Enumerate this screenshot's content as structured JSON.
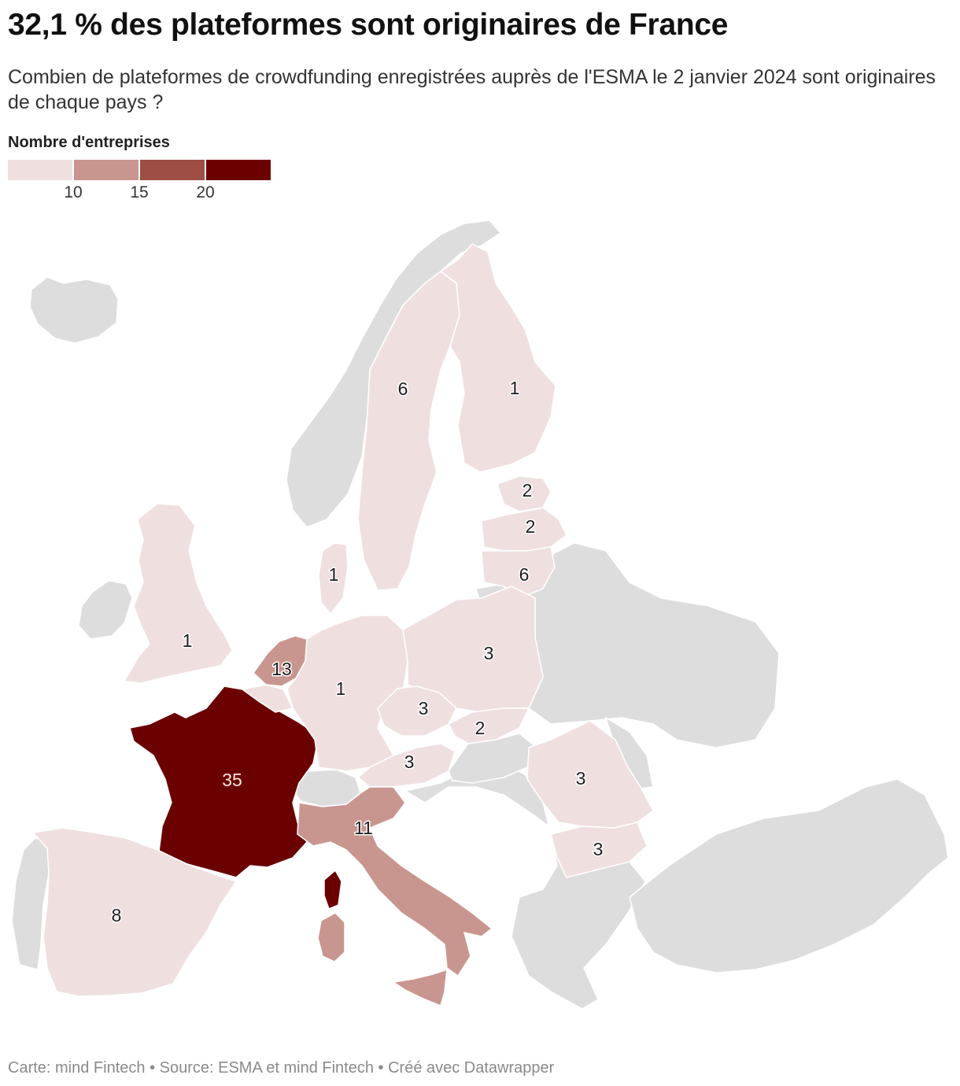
{
  "title": "32,1 % des plateformes sont originaires de France",
  "subtitle": "Combien de plateformes de crowdfunding enregistrées auprès de l'ESMA le 2 janvier 2024 sont originaires de chaque pays ?",
  "legend": {
    "title": "Nombre d'entreprises",
    "colors": [
      "#efe0df",
      "#c9968f",
      "#9e4e45",
      "#6b0000"
    ],
    "ticks": [
      "10",
      "15",
      "20"
    ]
  },
  "map": {
    "nodata_color": "#dddddd",
    "countries": [
      {
        "id": "france",
        "value": "35"
      },
      {
        "id": "netherlands",
        "value": "13"
      },
      {
        "id": "italy",
        "value": "11"
      },
      {
        "id": "spain",
        "value": "8"
      },
      {
        "id": "sweden",
        "value": "6"
      },
      {
        "id": "lithuania",
        "value": "6"
      },
      {
        "id": "poland",
        "value": "3"
      },
      {
        "id": "czechia",
        "value": "3"
      },
      {
        "id": "austria",
        "value": "3"
      },
      {
        "id": "romania",
        "value": "3"
      },
      {
        "id": "bulgaria",
        "value": "3"
      },
      {
        "id": "estonia",
        "value": "2"
      },
      {
        "id": "latvia",
        "value": "2"
      },
      {
        "id": "slovakia",
        "value": "2"
      },
      {
        "id": "finland",
        "value": "1"
      },
      {
        "id": "denmark",
        "value": "1"
      },
      {
        "id": "germany",
        "value": "1"
      },
      {
        "id": "united-kingdom",
        "value": "1"
      }
    ]
  },
  "footer": "Carte: mind Fintech • Source: ESMA et mind Fintech • Créé avec Datawrapper"
}
